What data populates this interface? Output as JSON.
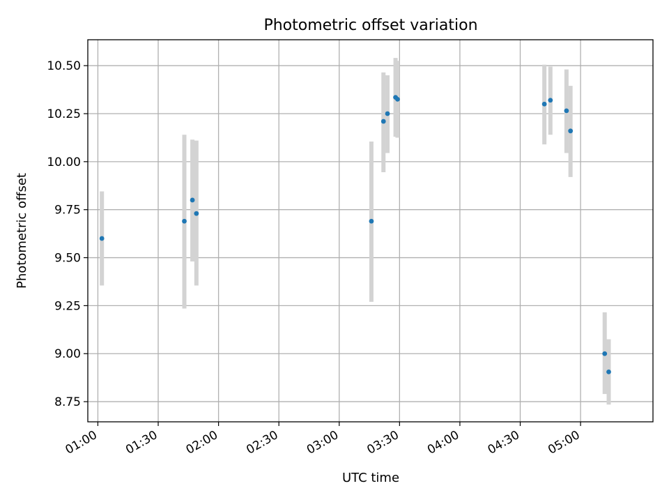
{
  "chart_data": {
    "type": "scatter",
    "title": "Photometric offset variation",
    "xlabel": "UTC time",
    "ylabel": "Photometric offset",
    "x_ticks": [
      "01:00",
      "01:30",
      "02:00",
      "02:30",
      "03:00",
      "03:30",
      "04:00",
      "04:30",
      "05:00"
    ],
    "y_ticks": [
      "8.75",
      "9.00",
      "9.25",
      "9.50",
      "9.75",
      "10.00",
      "10.25",
      "10.50"
    ],
    "xlim": [
      "00:55",
      "05:36"
    ],
    "ylim": [
      8.645,
      10.635
    ],
    "grid": true,
    "colors": {
      "point": "#1f77b4",
      "errorbar": "#d3d3d3"
    },
    "points": [
      {
        "x": "01:02",
        "y": 9.6,
        "ylow": 9.355,
        "yhigh": 9.845
      },
      {
        "x": "01:43",
        "y": 9.69,
        "ylow": 9.235,
        "yhigh": 10.14
      },
      {
        "x": "01:47",
        "y": 9.8,
        "ylow": 9.48,
        "yhigh": 10.115
      },
      {
        "x": "01:49",
        "y": 9.73,
        "ylow": 9.355,
        "yhigh": 10.11
      },
      {
        "x": "03:16",
        "y": 9.69,
        "ylow": 9.27,
        "yhigh": 10.105
      },
      {
        "x": "03:22",
        "y": 10.21,
        "ylow": 9.945,
        "yhigh": 10.465
      },
      {
        "x": "03:24",
        "y": 10.25,
        "ylow": 10.045,
        "yhigh": 10.45
      },
      {
        "x": "03:28",
        "y": 10.335,
        "ylow": 10.13,
        "yhigh": 10.54
      },
      {
        "x": "03:29",
        "y": 10.325,
        "ylow": 10.125,
        "yhigh": 10.525
      },
      {
        "x": "04:42",
        "y": 10.3,
        "ylow": 10.09,
        "yhigh": 10.505
      },
      {
        "x": "04:45",
        "y": 10.32,
        "ylow": 10.14,
        "yhigh": 10.495
      },
      {
        "x": "04:53",
        "y": 10.265,
        "ylow": 10.045,
        "yhigh": 10.48
      },
      {
        "x": "04:55",
        "y": 10.16,
        "ylow": 9.92,
        "yhigh": 10.395
      },
      {
        "x": "05:12",
        "y": 9.0,
        "ylow": 8.79,
        "yhigh": 9.215
      },
      {
        "x": "05:14",
        "y": 8.905,
        "ylow": 8.735,
        "yhigh": 9.075
      }
    ]
  }
}
